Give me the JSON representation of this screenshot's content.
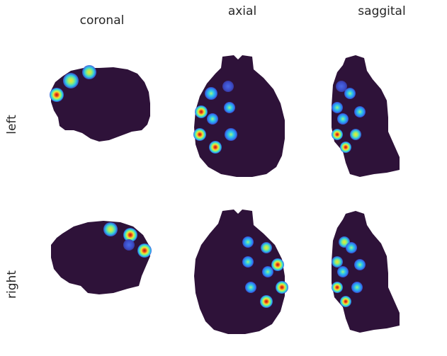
{
  "columns": {
    "coronal": "coronal",
    "axial": "axial",
    "saggital": "saggital"
  },
  "rows": {
    "left": "left",
    "right": "right"
  },
  "colors": {
    "mask": "#2e1239",
    "background": "#ffffff",
    "text": "#262626",
    "blob_outer": "#3a5fe6",
    "blob_mid": "#2ec9e8",
    "blob_inner": "#8ef06a",
    "blob_hot": "#f2e531",
    "blob_peak": "#c42a12"
  }
}
